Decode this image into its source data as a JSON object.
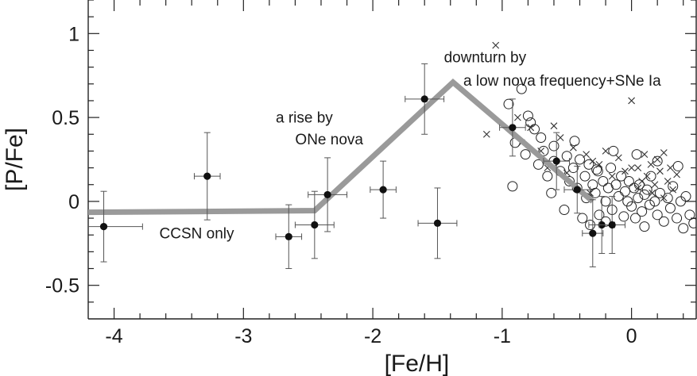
{
  "chart_data": {
    "type": "scatter",
    "title": "",
    "xlabel": "[Fe/H]",
    "ylabel": "[P/Fe]",
    "xlim": [
      -4.2,
      0.5
    ],
    "ylim": [
      -0.7,
      1.2
    ],
    "x_ticks": [
      "-4",
      "-3",
      "-2",
      "-1",
      "0"
    ],
    "y_ticks": [
      "1",
      "0.5",
      "0",
      "-0.5"
    ],
    "x_tick_values": [
      -4,
      -3,
      -2,
      -1,
      0
    ],
    "y_tick_values": [
      1,
      0.5,
      0,
      -0.5
    ],
    "grid": false,
    "legend": "none",
    "annotations": [
      {
        "text": "downturn by",
        "x": -1.45,
        "y": 0.83
      },
      {
        "text": "a low nova frequency+SNe Ia",
        "x": -1.3,
        "y": 0.69
      },
      {
        "text": "a rise by",
        "x": -2.75,
        "y": 0.47
      },
      {
        "text": "ONe nova",
        "x": -2.6,
        "y": 0.34
      },
      {
        "text": "CCSN only",
        "x": -3.65,
        "y": -0.22
      }
    ],
    "series": [
      {
        "kind": "model-line",
        "color": "#9a9a9a",
        "x": [
          -4.2,
          -2.45,
          -1.38,
          -0.3
        ],
        "y": [
          -0.065,
          -0.055,
          0.71,
          0.0
        ]
      },
      {
        "kind": "points-with-errors",
        "marker": "filled-circle",
        "color": "#111111",
        "x": [
          -4.08,
          -3.28,
          -2.65,
          -2.45,
          -2.35,
          -1.92,
          -1.6,
          -1.5,
          -0.92,
          -0.58,
          -0.42,
          -0.3,
          -0.23,
          -0.15
        ],
        "y": [
          -0.15,
          0.15,
          -0.21,
          -0.14,
          0.04,
          0.07,
          0.61,
          -0.13,
          0.44,
          0.24,
          0.07,
          -0.19,
          -0.14,
          -0.14
        ],
        "xerr": [
          0.3,
          0.1,
          0.1,
          0.15,
          0.15,
          0.1,
          0.15,
          0.15,
          0.1,
          0.1,
          0.1,
          0.08,
          0.1,
          0.1
        ],
        "yerr": [
          0.21,
          0.26,
          0.19,
          0.2,
          0.22,
          0.17,
          0.21,
          0.21,
          0.17,
          0.17,
          0.14,
          0.2,
          0.17,
          0.17
        ]
      },
      {
        "kind": "scatter",
        "marker": "open-circle",
        "color": "#222222",
        "x": [
          -0.95,
          -0.9,
          -0.85,
          -0.82,
          -0.8,
          -0.75,
          -0.72,
          -0.7,
          -0.68,
          -0.65,
          -0.6,
          -0.6,
          -0.55,
          -0.52,
          -0.5,
          -0.48,
          -0.45,
          -0.42,
          -0.4,
          -0.38,
          -0.36,
          -0.35,
          -0.33,
          -0.32,
          -0.3,
          -0.28,
          -0.26,
          -0.25,
          -0.22,
          -0.2,
          -0.2,
          -0.18,
          -0.16,
          -0.15,
          -0.12,
          -0.1,
          -0.08,
          -0.06,
          -0.05,
          -0.03,
          -0.02,
          0.0,
          0.02,
          0.03,
          0.05,
          0.06,
          0.08,
          0.1,
          0.1,
          0.12,
          0.14,
          0.15,
          0.18,
          0.2,
          0.22,
          0.25,
          0.28,
          0.3,
          0.32,
          0.35,
          0.38,
          0.4,
          0.42,
          0.45,
          0.48,
          -0.92,
          -0.78,
          -0.62,
          -0.44,
          -0.27,
          -0.14,
          0.04,
          0.2,
          0.36
        ],
        "y": [
          0.58,
          0.35,
          0.67,
          0.28,
          0.51,
          0.43,
          0.22,
          0.38,
          0.3,
          0.15,
          0.33,
          0.24,
          0.18,
          -0.05,
          0.27,
          0.12,
          0.2,
          0.08,
          0.25,
          -0.1,
          0.15,
          0.02,
          0.22,
          -0.14,
          0.1,
          0.05,
          0.18,
          -0.08,
          0.12,
          0.0,
          -0.12,
          0.08,
          0.2,
          -0.05,
          0.1,
          0.03,
          0.15,
          -0.09,
          0.06,
          0.0,
          0.12,
          -0.03,
          0.08,
          -0.1,
          0.02,
          0.1,
          -0.06,
          0.04,
          -0.15,
          0.07,
          -0.02,
          0.15,
          0.0,
          -0.08,
          0.05,
          -0.12,
          0.02,
          -0.04,
          0.09,
          -0.1,
          0.0,
          -0.16,
          0.03,
          -0.08,
          -0.13,
          0.09,
          0.47,
          0.05,
          0.36,
          0.19,
          0.3,
          0.28,
          0.24,
          0.21
        ]
      },
      {
        "kind": "scatter",
        "marker": "cross",
        "color": "#333333",
        "x": [
          -1.05,
          -1.12,
          -0.88,
          -0.85,
          -0.78,
          -0.7,
          -0.65,
          -0.55,
          -0.45,
          -0.35,
          -0.3,
          -0.25,
          -0.2,
          -0.15,
          -0.1,
          -0.05,
          0.0,
          0.05,
          0.08,
          0.1,
          0.12,
          0.15,
          0.18,
          0.2,
          0.22,
          0.25,
          0.28,
          0.3,
          0.32,
          0.35,
          0.0,
          -0.32,
          -0.5,
          -0.6,
          0.16,
          0.25,
          0.05
        ],
        "y": [
          0.93,
          0.4,
          0.5,
          0.35,
          0.44,
          0.3,
          0.2,
          0.38,
          0.32,
          0.28,
          0.24,
          0.22,
          0.3,
          0.15,
          0.26,
          0.18,
          0.6,
          0.2,
          0.12,
          0.28,
          0.15,
          0.22,
          0.1,
          0.25,
          0.18,
          0.29,
          0.12,
          0.2,
          0.07,
          0.16,
          0.2,
          0.05,
          0.17,
          0.45,
          0.05,
          0.02,
          0.08
        ]
      }
    ]
  }
}
